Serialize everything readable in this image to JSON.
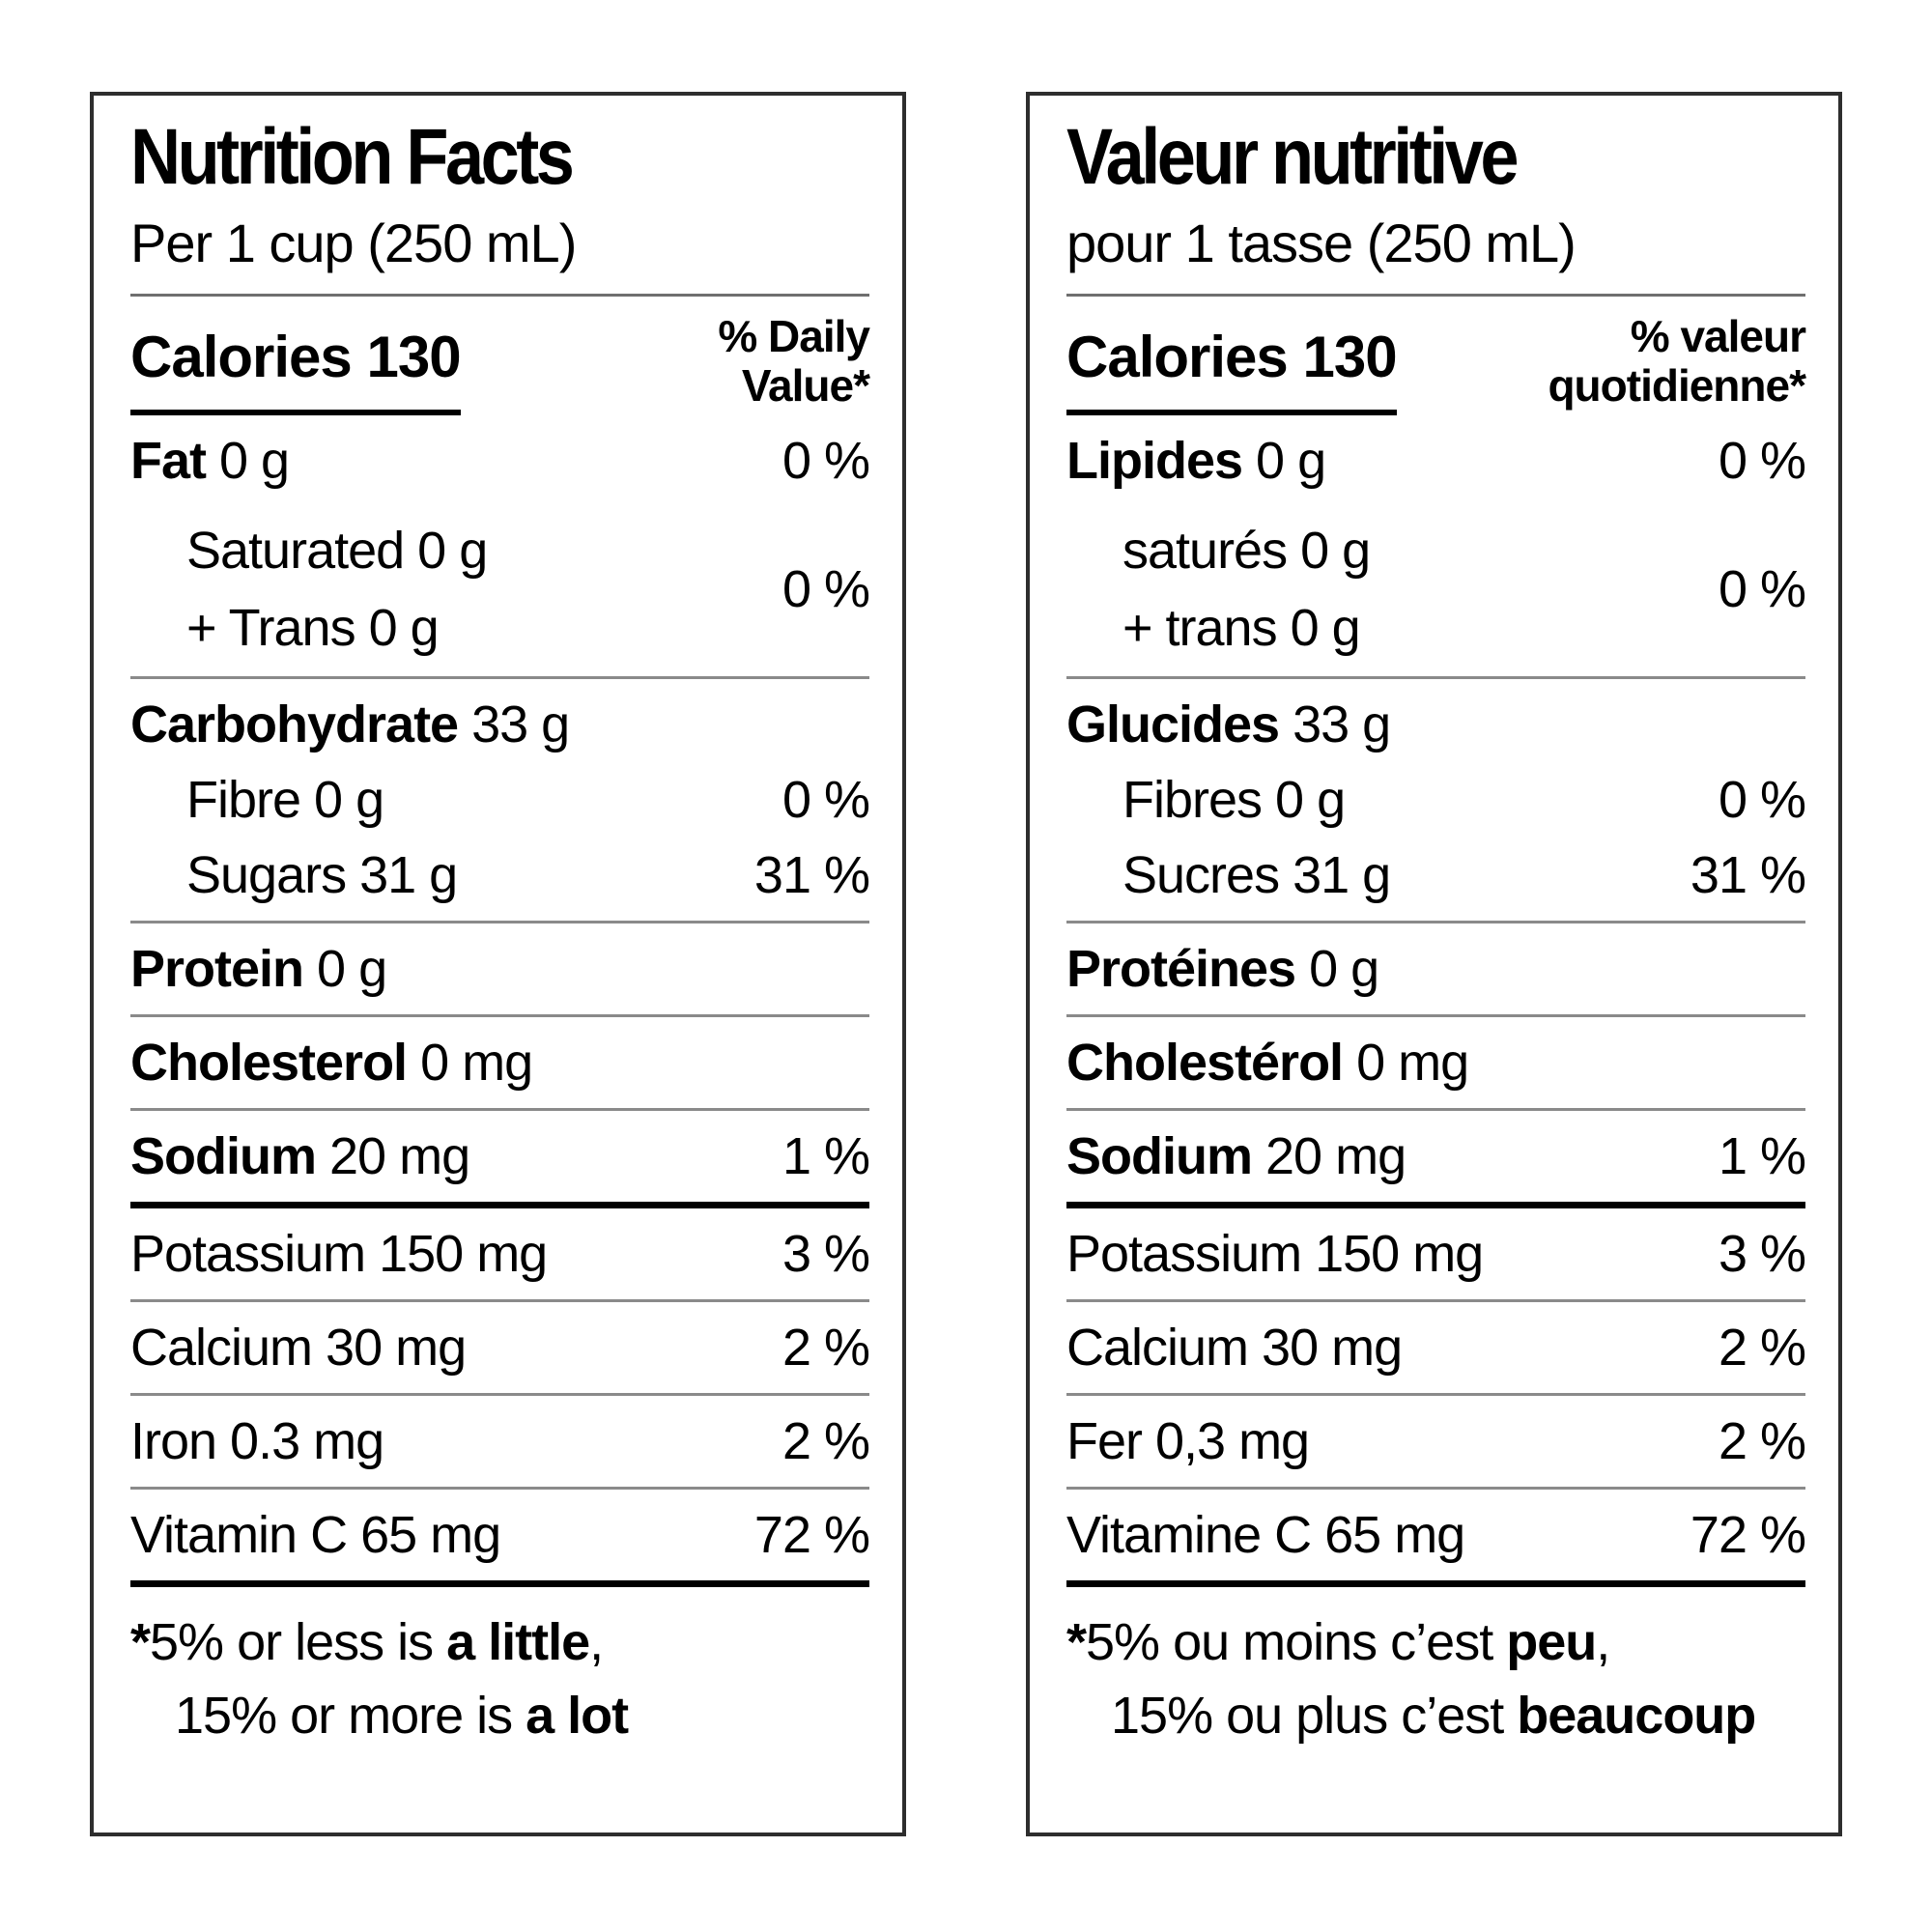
{
  "colors": {
    "text": "#000000",
    "panel_border": "#2e2e2e",
    "divider_thin": "#8a8a8a",
    "divider_thick": "#000000",
    "background": "#ffffff"
  },
  "panels": {
    "en": {
      "title": "Nutrition Facts",
      "serving": "Per 1 cup (250 mL)",
      "calories": {
        "label": "Calories",
        "value": "130"
      },
      "dv_line1": "% Daily",
      "dv_line2": "Value*",
      "fat": {
        "name": "Fat",
        "amount": "0 g",
        "pct": "0 %"
      },
      "fat_sub": {
        "line1": "Saturated 0 g",
        "line2": "+ Trans 0 g",
        "pct": "0 %"
      },
      "carb": {
        "name": "Carbohydrate",
        "amount": "33 g"
      },
      "fibre": {
        "label": "Fibre 0 g",
        "pct": "0 %"
      },
      "sugars": {
        "label": "Sugars 31 g",
        "pct": "31 %"
      },
      "protein": {
        "name": "Protein",
        "amount": "0 g"
      },
      "cholesterol": {
        "name": "Cholesterol",
        "amount": "0 mg"
      },
      "sodium": {
        "name": "Sodium",
        "amount": "20 mg",
        "pct": "1 %"
      },
      "potassium": {
        "label": "Potassium 150 mg",
        "pct": "3 %"
      },
      "calcium": {
        "label": "Calcium 30 mg",
        "pct": "2 %"
      },
      "iron": {
        "label": "Iron 0.3 mg",
        "pct": "2 %"
      },
      "vitamin_c": {
        "label": "Vitamin C 65 mg",
        "pct": "72 %"
      },
      "footnote": {
        "star": "*",
        "line1_pre": "5% or less is ",
        "line1_bold": "a little",
        "line1_post": ",",
        "line2_pre": "15% or more is ",
        "line2_bold": "a lot"
      }
    },
    "fr": {
      "title": "Valeur nutritive",
      "serving": "pour 1 tasse (250 mL)",
      "calories": {
        "label": "Calories",
        "value": "130"
      },
      "dv_line1": "% valeur",
      "dv_line2": "quotidienne*",
      "fat": {
        "name": "Lipides",
        "amount": "0 g",
        "pct": "0 %"
      },
      "fat_sub": {
        "line1": "saturés 0 g",
        "line2": "+ trans 0 g",
        "pct": "0 %"
      },
      "carb": {
        "name": "Glucides",
        "amount": "33 g"
      },
      "fibre": {
        "label": "Fibres 0 g",
        "pct": "0 %"
      },
      "sugars": {
        "label": "Sucres 31 g",
        "pct": "31 %"
      },
      "protein": {
        "name": "Protéines",
        "amount": "0 g"
      },
      "cholesterol": {
        "name": "Cholestérol",
        "amount": "0 mg"
      },
      "sodium": {
        "name": "Sodium",
        "amount": "20 mg",
        "pct": "1 %"
      },
      "potassium": {
        "label": "Potassium 150 mg",
        "pct": "3 %"
      },
      "calcium": {
        "label": "Calcium 30 mg",
        "pct": "2 %"
      },
      "iron": {
        "label": "Fer 0,3 mg",
        "pct": "2 %"
      },
      "vitamin_c": {
        "label": "Vitamine C 65 mg",
        "pct": "72 %"
      },
      "footnote": {
        "star": "*",
        "line1_pre": "5% ou moins c’est ",
        "line1_bold": "peu",
        "line1_post": ",",
        "line2_pre": "15% ou plus c’est ",
        "line2_bold": "beaucoup"
      }
    }
  }
}
